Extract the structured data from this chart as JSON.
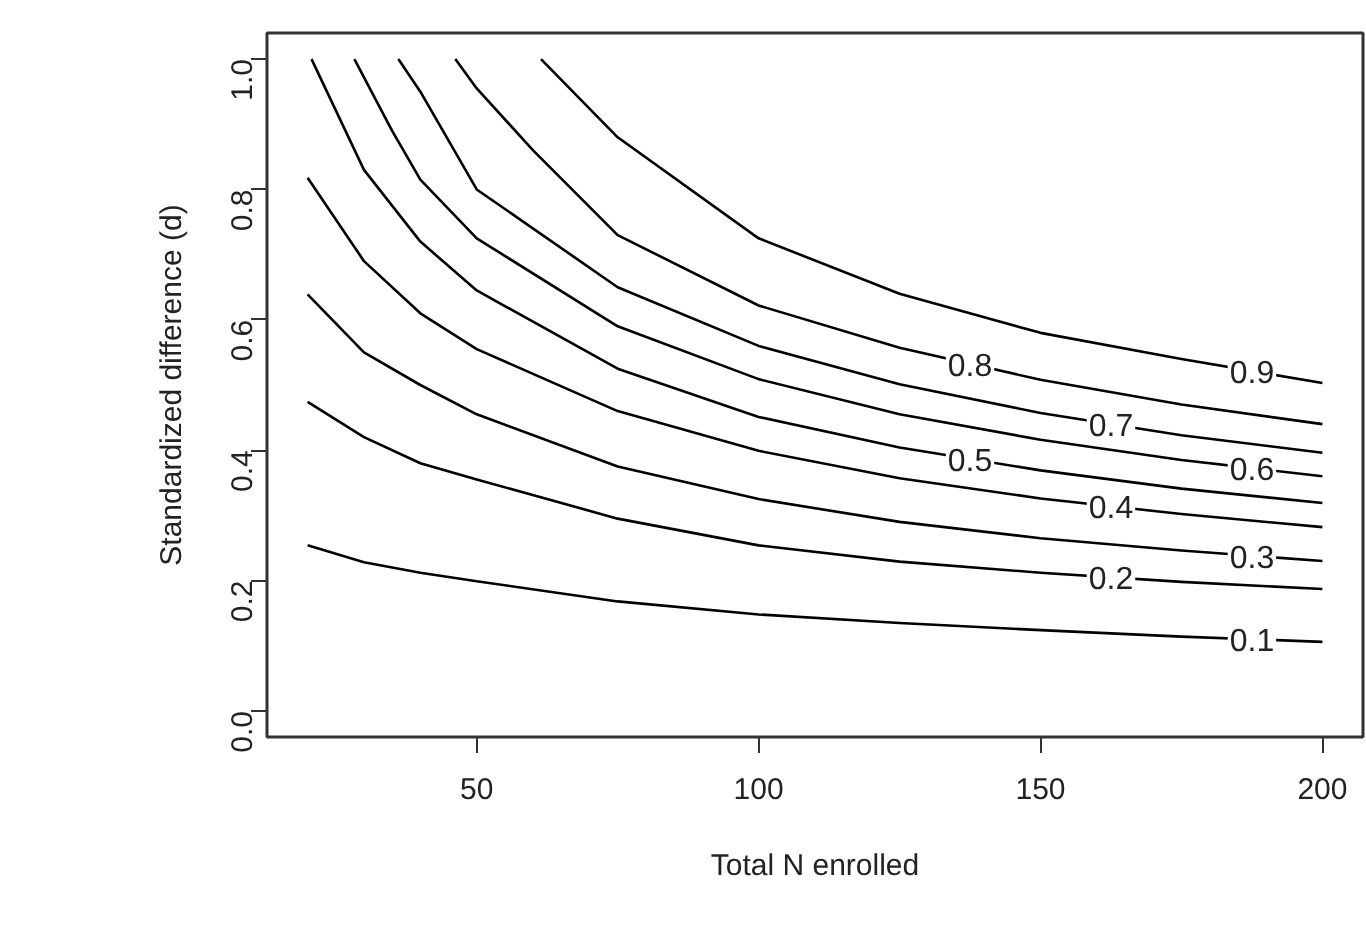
{
  "chart_data": {
    "type": "line",
    "xlabel": "Total N enrolled",
    "ylabel": "Standardized difference (d)",
    "xlim": [
      12.8,
      207.2
    ],
    "ylim": [
      -0.04,
      1.04
    ],
    "xticks": [
      50,
      100,
      150,
      200
    ],
    "yticks": [
      {
        "value": 0,
        "label": "0.0"
      },
      0.2,
      0.4,
      0.6,
      0.8,
      {
        "value": 1,
        "label": "1.0"
      }
    ],
    "grid": false,
    "line_style": "solid",
    "marker": "none",
    "series": [
      {
        "name": "0.1",
        "color": "#000000",
        "x": [
          20,
          30,
          40,
          50,
          75,
          100,
          125,
          150,
          175,
          200
        ],
        "values": [
          0.254,
          0.228,
          0.212,
          0.199,
          0.168,
          0.148,
          0.135,
          0.124,
          0.114,
          0.106
        ]
      },
      {
        "name": "0.2",
        "color": "#000000",
        "x": [
          20,
          30,
          40,
          50,
          75,
          100,
          125,
          150,
          175,
          200
        ],
        "values": [
          0.474,
          0.42,
          0.38,
          0.355,
          0.295,
          0.254,
          0.229,
          0.212,
          0.198,
          0.187
        ]
      },
      {
        "name": "0.3",
        "color": "#000000",
        "x": [
          20,
          30,
          40,
          50,
          75,
          100,
          125,
          150,
          175,
          200
        ],
        "values": [
          0.639,
          0.55,
          0.5,
          0.455,
          0.375,
          0.325,
          0.29,
          0.265,
          0.246,
          0.23
        ]
      },
      {
        "name": "0.4",
        "color": "#000000",
        "x": [
          20,
          30,
          40,
          50,
          75,
          100,
          125,
          150,
          175,
          200
        ],
        "values": [
          0.818,
          0.69,
          0.61,
          0.555,
          0.46,
          0.399,
          0.357,
          0.326,
          0.302,
          0.282
        ]
      },
      {
        "name": "0.5",
        "color": "#000000",
        "x": [
          20.7,
          30,
          40,
          50,
          75,
          100,
          125,
          150,
          175,
          200
        ],
        "values": [
          1.0,
          0.83,
          0.72,
          0.645,
          0.525,
          0.451,
          0.404,
          0.369,
          0.341,
          0.319
        ]
      },
      {
        "name": "0.6",
        "color": "#000000",
        "x": [
          28.3,
          35,
          40,
          50,
          75,
          100,
          125,
          150,
          175,
          200
        ],
        "values": [
          1.0,
          0.89,
          0.815,
          0.725,
          0.59,
          0.509,
          0.455,
          0.416,
          0.385,
          0.36
        ]
      },
      {
        "name": "0.7",
        "color": "#000000",
        "x": [
          36.1,
          40,
          50,
          75,
          100,
          125,
          150,
          175,
          200
        ],
        "values": [
          1.0,
          0.95,
          0.8,
          0.65,
          0.56,
          0.501,
          0.457,
          0.423,
          0.396
        ]
      },
      {
        "name": "0.8",
        "color": "#000000",
        "x": [
          46.2,
          50,
          60,
          75,
          100,
          125,
          150,
          175,
          200
        ],
        "values": [
          1.0,
          0.955,
          0.86,
          0.73,
          0.622,
          0.557,
          0.508,
          0.47,
          0.44
        ]
      },
      {
        "name": "0.9",
        "color": "#000000",
        "x": [
          61.4,
          75,
          100,
          125,
          150,
          175,
          200
        ],
        "values": [
          1.0,
          0.88,
          0.725,
          0.64,
          0.58,
          0.54,
          0.503
        ]
      }
    ]
  }
}
